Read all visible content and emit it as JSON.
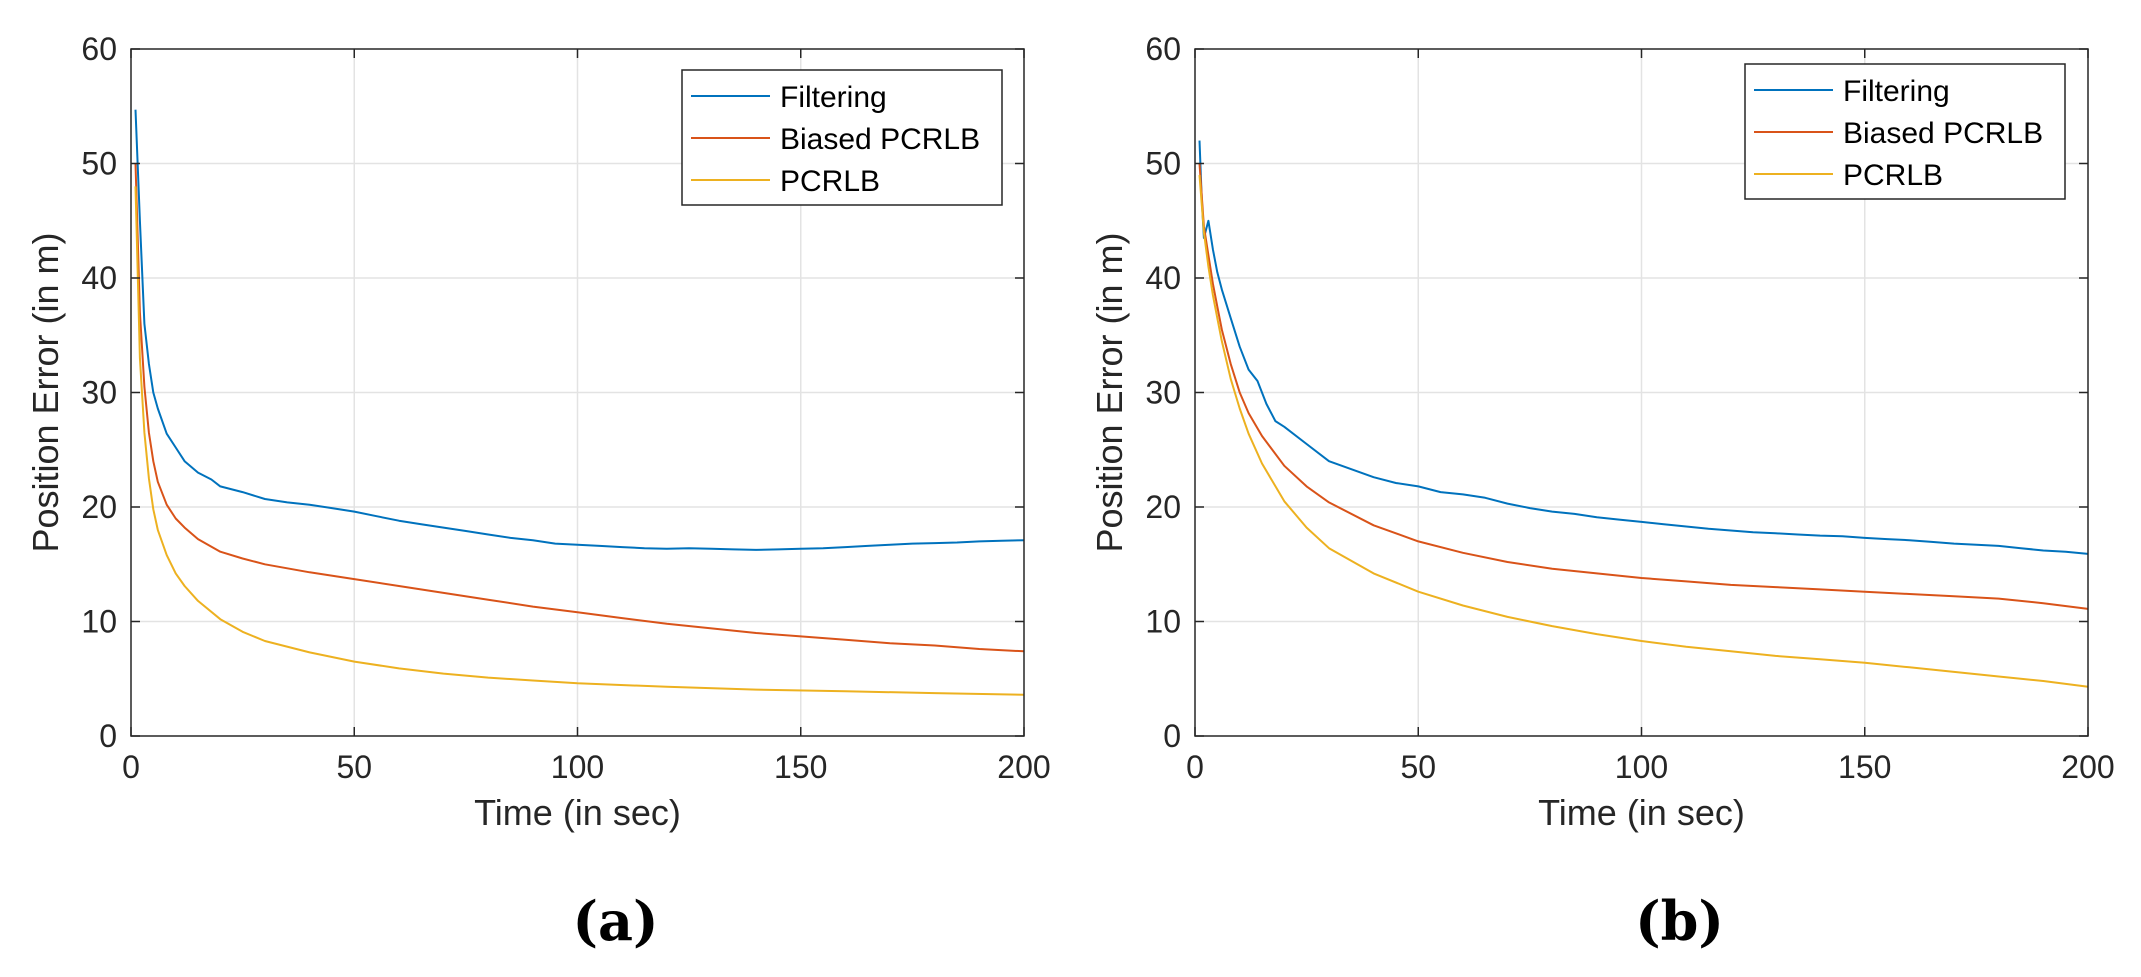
{
  "chart_data": [
    {
      "type": "line",
      "panel_label": "(a)",
      "xlabel": "Time (in sec)",
      "ylabel": "Position Error (in m)",
      "xlim": [
        0,
        200
      ],
      "ylim": [
        0,
        60
      ],
      "xticks": [
        0,
        50,
        100,
        150,
        200
      ],
      "yticks": [
        0,
        10,
        20,
        30,
        40,
        50,
        60
      ],
      "grid": true,
      "legend_position": "top-right",
      "series": [
        {
          "name": "Filtering",
          "color": "#0072BD",
          "x": [
            1,
            2,
            3,
            4,
            5,
            6,
            8,
            10,
            12,
            15,
            18,
            20,
            25,
            30,
            35,
            40,
            45,
            50,
            55,
            60,
            65,
            70,
            75,
            80,
            85,
            90,
            95,
            100,
            105,
            110,
            115,
            120,
            125,
            130,
            135,
            140,
            145,
            150,
            155,
            160,
            165,
            170,
            175,
            180,
            185,
            190,
            195,
            200
          ],
          "y": [
            54.7,
            45,
            36,
            32.5,
            30,
            28.6,
            26.4,
            25.2,
            24,
            23,
            22.4,
            21.8,
            21.3,
            20.7,
            20.4,
            20.2,
            19.9,
            19.6,
            19.2,
            18.8,
            18.5,
            18.2,
            17.9,
            17.6,
            17.3,
            17.1,
            16.8,
            16.7,
            16.6,
            16.5,
            16.4,
            16.35,
            16.4,
            16.35,
            16.3,
            16.25,
            16.3,
            16.35,
            16.4,
            16.5,
            16.6,
            16.7,
            16.8,
            16.85,
            16.9,
            17,
            17.05,
            17.1
          ]
        },
        {
          "name": "Biased PCRLB",
          "color": "#D95319",
          "x": [
            1,
            2,
            3,
            4,
            5,
            6,
            8,
            10,
            12,
            15,
            20,
            25,
            30,
            40,
            50,
            60,
            70,
            80,
            90,
            100,
            110,
            120,
            130,
            140,
            150,
            160,
            170,
            180,
            190,
            200
          ],
          "y": [
            50,
            37,
            30.5,
            26.5,
            24,
            22.2,
            20.2,
            19,
            18.2,
            17.2,
            16.1,
            15.5,
            15,
            14.3,
            13.7,
            13.1,
            12.5,
            11.9,
            11.3,
            10.8,
            10.3,
            9.8,
            9.4,
            9.0,
            8.7,
            8.4,
            8.1,
            7.9,
            7.6,
            7.4
          ]
        },
        {
          "name": "PCRLB",
          "color": "#EDB120",
          "x": [
            1,
            2,
            3,
            4,
            5,
            6,
            8,
            10,
            12,
            15,
            20,
            25,
            30,
            40,
            50,
            60,
            70,
            80,
            90,
            100,
            120,
            140,
            160,
            180,
            200
          ],
          "y": [
            48,
            33,
            26.5,
            22.5,
            19.8,
            18,
            15.8,
            14.2,
            13.1,
            11.8,
            10.2,
            9.1,
            8.3,
            7.3,
            6.5,
            5.9,
            5.45,
            5.1,
            4.85,
            4.6,
            4.3,
            4.05,
            3.9,
            3.75,
            3.6
          ]
        }
      ]
    },
    {
      "type": "line",
      "panel_label": "(b)",
      "xlabel": "Time (in sec)",
      "ylabel": "Position Error (in m)",
      "xlim": [
        0,
        200
      ],
      "ylim": [
        0,
        60
      ],
      "xticks": [
        0,
        50,
        100,
        150,
        200
      ],
      "yticks": [
        0,
        10,
        20,
        30,
        40,
        50,
        60
      ],
      "grid": true,
      "legend_position": "top-right",
      "series": [
        {
          "name": "Filtering",
          "color": "#0072BD",
          "x": [
            1,
            1.5,
            2,
            3,
            4,
            5,
            6,
            8,
            10,
            12,
            14,
            16,
            18,
            20,
            25,
            30,
            35,
            40,
            45,
            50,
            55,
            60,
            65,
            70,
            75,
            80,
            85,
            90,
            95,
            100,
            105,
            110,
            115,
            120,
            125,
            130,
            135,
            140,
            145,
            150,
            155,
            160,
            165,
            170,
            175,
            180,
            185,
            190,
            195,
            200
          ],
          "y": [
            52,
            47,
            43.5,
            45,
            42.5,
            40.5,
            39,
            36.5,
            34,
            32,
            31,
            29,
            27.5,
            27,
            25.5,
            24,
            23.3,
            22.6,
            22.1,
            21.8,
            21.3,
            21.1,
            20.8,
            20.3,
            19.9,
            19.6,
            19.4,
            19.1,
            18.9,
            18.7,
            18.5,
            18.3,
            18.1,
            17.95,
            17.8,
            17.7,
            17.6,
            17.5,
            17.45,
            17.3,
            17.2,
            17.1,
            16.95,
            16.8,
            16.7,
            16.6,
            16.4,
            16.2,
            16.1,
            15.9
          ]
        },
        {
          "name": "Biased PCRLB",
          "color": "#D95319",
          "x": [
            1,
            2,
            3,
            4,
            5,
            6,
            8,
            10,
            12,
            15,
            20,
            25,
            30,
            40,
            50,
            60,
            70,
            80,
            90,
            100,
            110,
            120,
            130,
            140,
            150,
            160,
            170,
            180,
            190,
            200
          ],
          "y": [
            50,
            44.5,
            42,
            39.5,
            37.5,
            35.5,
            32.5,
            30,
            28.2,
            26.2,
            23.6,
            21.8,
            20.4,
            18.4,
            17,
            16,
            15.2,
            14.6,
            14.2,
            13.8,
            13.5,
            13.2,
            13,
            12.8,
            12.6,
            12.4,
            12.2,
            12,
            11.6,
            11.1
          ]
        },
        {
          "name": "PCRLB",
          "color": "#EDB120",
          "x": [
            1,
            2,
            3,
            4,
            5,
            6,
            8,
            10,
            12,
            15,
            20,
            25,
            30,
            40,
            50,
            60,
            70,
            80,
            90,
            100,
            110,
            120,
            130,
            140,
            150,
            160,
            170,
            180,
            190,
            200
          ],
          "y": [
            49,
            44,
            41,
            38.5,
            36.5,
            34.5,
            31.2,
            28.6,
            26.4,
            23.8,
            20.5,
            18.2,
            16.4,
            14.2,
            12.6,
            11.4,
            10.4,
            9.6,
            8.9,
            8.3,
            7.8,
            7.4,
            7.0,
            6.7,
            6.4,
            6.0,
            5.6,
            5.2,
            4.8,
            4.3
          ]
        }
      ]
    }
  ]
}
